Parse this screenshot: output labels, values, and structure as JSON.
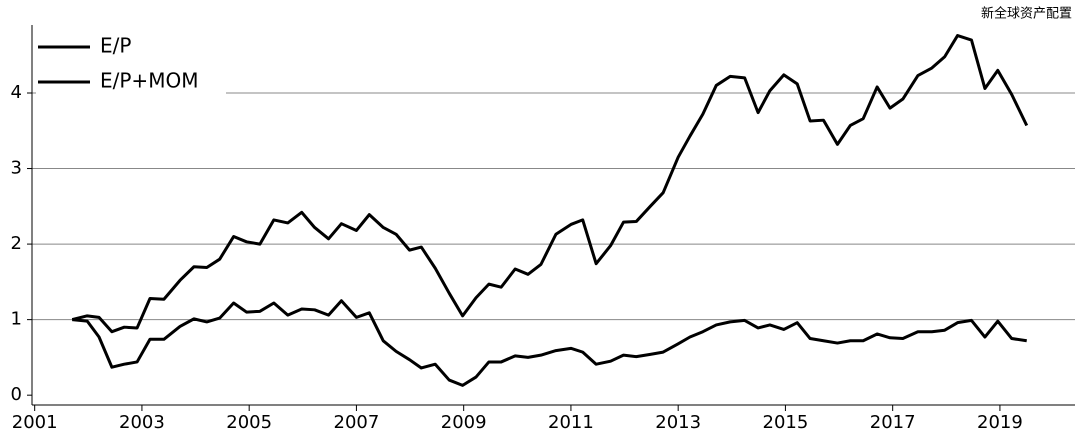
{
  "chart_data": {
    "type": "line",
    "source": "新全球资产配置",
    "x": [
      2001.7,
      2001.98,
      2002.2,
      2002.44,
      2002.67,
      2002.91,
      2003.15,
      2003.41,
      2003.71,
      2003.97,
      2004.21,
      2004.45,
      2004.71,
      2004.95,
      2005.2,
      2005.46,
      2005.72,
      2005.98,
      2006.22,
      2006.48,
      2006.72,
      2007.0,
      2007.24,
      2007.5,
      2007.74,
      2007.99,
      2008.21,
      2008.47,
      2008.73,
      2008.98,
      2009.23,
      2009.47,
      2009.7,
      2009.96,
      2010.2,
      2010.44,
      2010.72,
      2011.0,
      2011.22,
      2011.47,
      2011.74,
      2011.98,
      2012.22,
      2012.48,
      2012.72,
      2013.0,
      2013.22,
      2013.46,
      2013.71,
      2013.97,
      2014.24,
      2014.49,
      2014.71,
      2014.97,
      2015.22,
      2015.46,
      2015.71,
      2015.97,
      2016.21,
      2016.45,
      2016.71,
      2016.95,
      2017.19,
      2017.47,
      2017.73,
      2017.97,
      2018.21,
      2018.47,
      2018.72,
      2018.96,
      2019.22,
      2019.5
    ],
    "series": [
      {
        "name": "E/P",
        "color": "#000000",
        "values": [
          1.0,
          0.98,
          0.77,
          0.37,
          0.41,
          0.44,
          0.74,
          0.74,
          0.91,
          1.01,
          0.97,
          1.02,
          1.22,
          1.1,
          1.11,
          1.22,
          1.06,
          1.14,
          1.13,
          1.06,
          1.25,
          1.03,
          1.09,
          0.72,
          0.58,
          0.47,
          0.36,
          0.41,
          0.2,
          0.13,
          0.24,
          0.44,
          0.44,
          0.52,
          0.5,
          0.53,
          0.59,
          0.62,
          0.57,
          0.41,
          0.45,
          0.53,
          0.51,
          0.54,
          0.57,
          0.68,
          0.77,
          0.84,
          0.93,
          0.97,
          0.99,
          0.89,
          0.93,
          0.87,
          0.96,
          0.75,
          0.72,
          0.69,
          0.72,
          0.72,
          0.81,
          0.76,
          0.75,
          0.84,
          0.84,
          0.86,
          0.96,
          0.99,
          0.77,
          0.98,
          0.75,
          0.72
        ]
      },
      {
        "name": "E/P+MOM",
        "color": "#000000",
        "values": [
          1.0,
          1.05,
          1.03,
          0.84,
          0.9,
          0.89,
          1.28,
          1.27,
          1.52,
          1.7,
          1.69,
          1.8,
          2.1,
          2.03,
          2.0,
          2.32,
          2.28,
          2.42,
          2.22,
          2.07,
          2.27,
          2.18,
          2.39,
          2.22,
          2.13,
          1.92,
          1.96,
          1.68,
          1.35,
          1.05,
          1.29,
          1.47,
          1.43,
          1.67,
          1.6,
          1.73,
          2.13,
          2.26,
          2.32,
          1.74,
          1.98,
          2.29,
          2.3,
          2.5,
          2.68,
          3.15,
          3.43,
          3.72,
          4.1,
          4.22,
          4.2,
          3.74,
          4.03,
          4.24,
          4.12,
          3.63,
          3.64,
          3.32,
          3.57,
          3.66,
          4.08,
          3.8,
          3.92,
          4.23,
          4.33,
          4.48,
          4.76,
          4.7,
          4.06,
          4.3,
          3.98,
          3.57
        ]
      }
    ],
    "xlim": [
      2000.95,
      2020.4
    ],
    "xticks": [
      2001,
      2003,
      2005,
      2007,
      2009,
      2011,
      2013,
      2015,
      2017,
      2019
    ],
    "ylim": [
      -0.13,
      4.9
    ],
    "yticks": [
      0,
      1,
      2,
      3,
      4
    ],
    "grid": true,
    "legend": "upper left"
  }
}
